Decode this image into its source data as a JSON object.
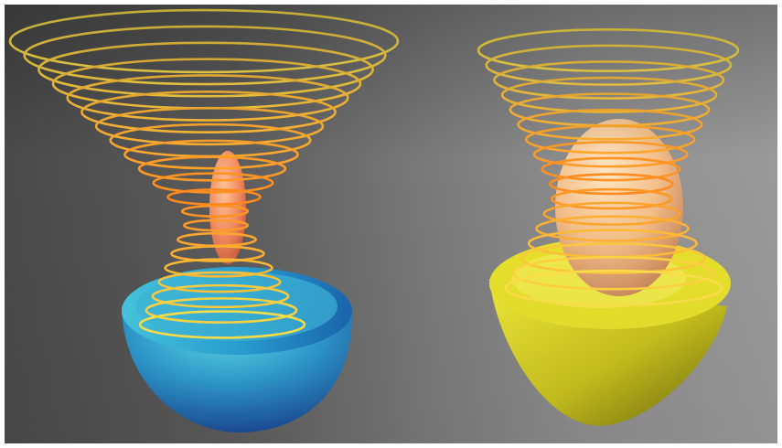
{
  "scene": {
    "left_object": {
      "well_color_top": "#4fd1e0",
      "well_color_bottom": "#1a3f8f",
      "body_color": "#f0946a",
      "body_shape": "narrow-elongated-ellipsoid"
    },
    "right_object": {
      "well_color": "#e6e02a",
      "body_color": "#f4c08c",
      "body_shape": "wide-ellipsoid"
    },
    "spiral_colors": [
      "#ffe14a",
      "#ff8a1e",
      "#ff6a1a"
    ],
    "background_colors": [
      "#4a4a4a",
      "#9a9a9a"
    ]
  }
}
